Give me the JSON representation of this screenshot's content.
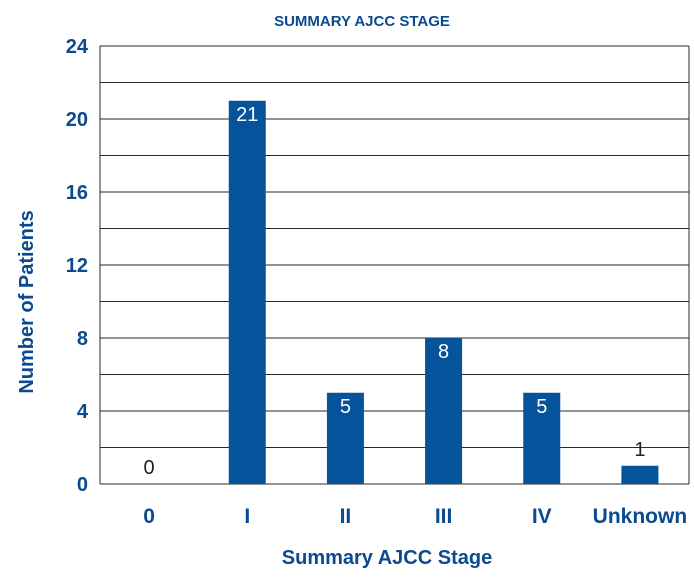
{
  "chart_data": {
    "type": "bar",
    "title": "SUMMARY AJCC STAGE",
    "xlabel": "Summary AJCC Stage",
    "ylabel": "Number of Patients",
    "categories": [
      "0",
      "I",
      "II",
      "III",
      "IV",
      "Unknown"
    ],
    "values": [
      0,
      21,
      5,
      8,
      5,
      1
    ],
    "ylim": [
      0,
      24
    ],
    "yticks": [
      0,
      4,
      8,
      12,
      16,
      20,
      24
    ],
    "grid": true,
    "legend": "none",
    "colors": {
      "bar": "#04539B",
      "text": "#0B4A8F",
      "grid": "#2A2A2A",
      "data_label_inside": "#FFFFFF",
      "data_label_outside": "#222222"
    }
  }
}
